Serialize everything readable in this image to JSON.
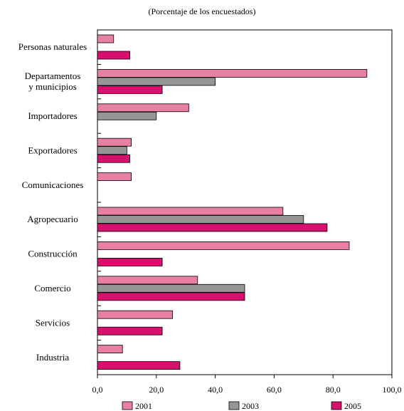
{
  "chart_data": {
    "type": "bar",
    "orientation": "horizontal",
    "subtitle": "(Porcentaje de los encuestados)",
    "categories": [
      "Personas naturales",
      "Departamentos\ny municipios",
      "Importadores",
      "Exportadores",
      "Comunicaciones",
      "Agropecuario",
      "Construcción",
      "Comercio",
      "Servicios",
      "Industria"
    ],
    "series": [
      {
        "name": "2001",
        "color": "#e87fa5",
        "values": [
          5.5,
          91.5,
          31.0,
          11.5,
          11.5,
          63.0,
          85.5,
          34.0,
          25.5,
          8.5
        ]
      },
      {
        "name": "2003",
        "color": "#969696",
        "values": [
          null,
          40.0,
          20.0,
          10.0,
          null,
          70.0,
          null,
          50.0,
          null,
          null
        ]
      },
      {
        "name": "2005",
        "color": "#d6106c",
        "values": [
          11.0,
          22.0,
          null,
          11.0,
          null,
          78.0,
          22.0,
          50.0,
          22.0,
          28.0
        ]
      }
    ],
    "x_ticks": [
      "0,0",
      "20,0",
      "40,0",
      "60,0",
      "80,0",
      "100,0"
    ],
    "xlim": [
      0,
      100
    ],
    "grid": false,
    "legend_position": "bottom"
  }
}
